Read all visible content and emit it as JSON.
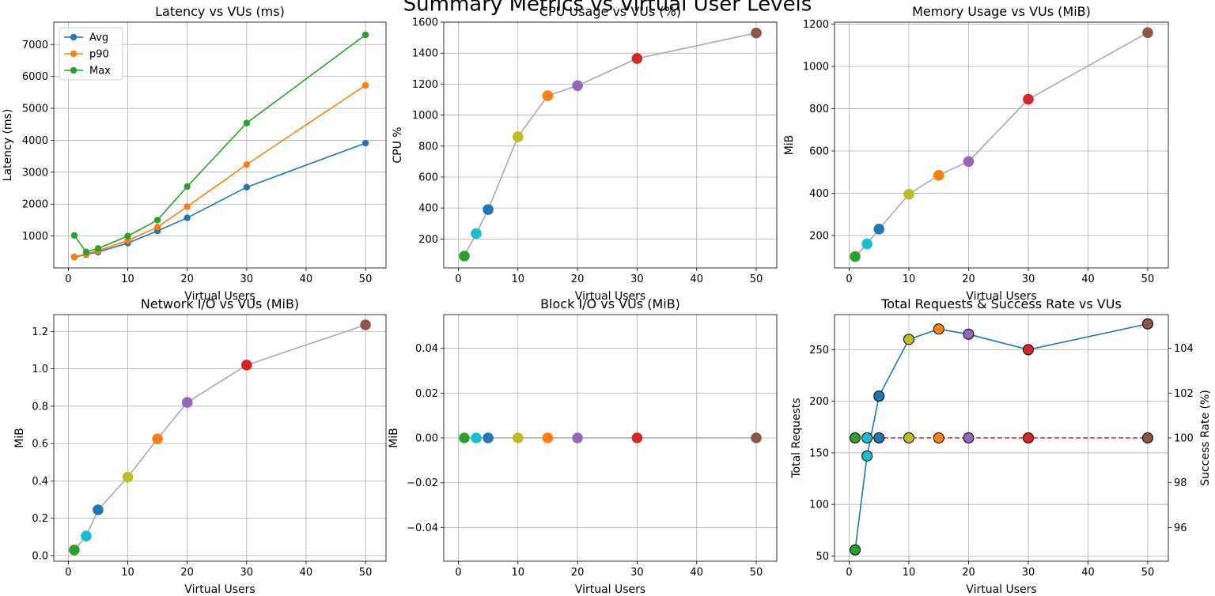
{
  "figure": {
    "suptitle": "Summary Metrics vs Virtual User Levels"
  },
  "point_colors": [
    "#2ca02c",
    "#17becf",
    "#1f77b4",
    "#bcbd22",
    "#ff7f0e",
    "#9467bd",
    "#d62728",
    "#8c564b"
  ],
  "chart_data": [
    {
      "id": "latency",
      "type": "line",
      "title": "Latency vs VUs (ms)",
      "xlabel": "Virtual Users",
      "ylabel": "Latency (ms)",
      "x": [
        1,
        3,
        5,
        10,
        15,
        20,
        30,
        50
      ],
      "xlim": [
        -2.45,
        53.45
      ],
      "ylim": [
        0,
        7700
      ],
      "xticks": [
        0,
        10,
        20,
        30,
        40,
        50
      ],
      "yticks": [
        1000,
        2000,
        3000,
        4000,
        5000,
        6000,
        7000
      ],
      "grid": true,
      "legend": "top-left",
      "series": [
        {
          "name": "Avg",
          "color": "#1f77b4",
          "values": [
            340,
            420,
            500,
            780,
            1160,
            1570,
            2530,
            3910
          ]
        },
        {
          "name": "p90",
          "color": "#ff7f0e",
          "values": [
            350,
            440,
            540,
            860,
            1280,
            1920,
            3240,
            5720
          ]
        },
        {
          "name": "Max",
          "color": "#2ca02c",
          "values": [
            1020,
            500,
            610,
            1000,
            1500,
            2550,
            4540,
            7300
          ]
        }
      ]
    },
    {
      "id": "cpu",
      "type": "line",
      "title": "CPU Usage vs VUs (%)",
      "xlabel": "Virtual Users",
      "ylabel": "CPU %",
      "x": [
        1,
        3,
        5,
        10,
        15,
        20,
        30,
        50
      ],
      "xlim": [
        -2.45,
        53.45
      ],
      "ylim": [
        13,
        1600
      ],
      "xticks": [
        0,
        10,
        20,
        30,
        40,
        50
      ],
      "yticks": [
        200,
        400,
        600,
        800,
        1000,
        1200,
        1400,
        1600
      ],
      "grid": true,
      "line_color": "#aaaaaa",
      "values": [
        90,
        235,
        390,
        860,
        1125,
        1190,
        1365,
        1530
      ]
    },
    {
      "id": "memory",
      "type": "line",
      "title": "Memory Usage vs VUs (MiB)",
      "xlabel": "Virtual Users",
      "ylabel": "MiB",
      "x": [
        1,
        3,
        5,
        10,
        15,
        20,
        30,
        50
      ],
      "xlim": [
        -2.45,
        53.45
      ],
      "ylim": [
        46,
        1210
      ],
      "xticks": [
        0,
        10,
        20,
        30,
        40,
        50
      ],
      "yticks": [
        200,
        400,
        600,
        800,
        1000,
        1200
      ],
      "grid": true,
      "line_color": "#aaaaaa",
      "values": [
        100,
        160,
        230,
        395,
        485,
        550,
        845,
        1160
      ]
    },
    {
      "id": "network",
      "type": "line",
      "title": "Network I/O vs VUs (MiB)",
      "xlabel": "Virtual Users",
      "ylabel": "MiB",
      "x": [
        1,
        3,
        5,
        10,
        15,
        20,
        30,
        50
      ],
      "xlim": [
        -2.45,
        53.45
      ],
      "ylim": [
        -0.03,
        1.29
      ],
      "xticks": [
        0,
        10,
        20,
        30,
        40,
        50
      ],
      "yticks": [
        0.0,
        0.2,
        0.4,
        0.6,
        0.8,
        1.0,
        1.2
      ],
      "ytick_labels": [
        "0.0",
        "0.2",
        "0.4",
        "0.6",
        "0.8",
        "1.0",
        "1.2"
      ],
      "grid": true,
      "line_color": "#aaaaaa",
      "values": [
        0.03,
        0.105,
        0.245,
        0.42,
        0.625,
        0.82,
        1.02,
        1.235
      ]
    },
    {
      "id": "block",
      "type": "line",
      "title": "Block I/O vs VUs (MiB)",
      "xlabel": "Virtual Users",
      "ylabel": "MiB",
      "x": [
        1,
        3,
        5,
        10,
        15,
        20,
        30,
        50
      ],
      "xlim": [
        -2.45,
        53.45
      ],
      "ylim": [
        -0.055,
        0.055
      ],
      "xticks": [
        0,
        10,
        20,
        30,
        40,
        50
      ],
      "yticks": [
        -0.04,
        -0.02,
        0.0,
        0.02,
        0.04
      ],
      "ytick_labels": [
        "−0.04",
        "−0.02",
        "0.00",
        "0.02",
        "0.04"
      ],
      "grid": true,
      "line_color": "#aaaaaa",
      "values": [
        0,
        0,
        0,
        0,
        0,
        0,
        0,
        0
      ]
    },
    {
      "id": "requests",
      "type": "line",
      "title": "Total Requests & Success Rate vs VUs",
      "xlabel": "Virtual Users",
      "ylabel": "Total Requests",
      "ylabel_color": "#1f77b4",
      "y2label": "Success Rate (%)",
      "y2label_color": "#d62728",
      "x": [
        1,
        3,
        5,
        10,
        15,
        20,
        30,
        50
      ],
      "xlim": [
        -2.45,
        53.45
      ],
      "ylim": [
        45,
        284
      ],
      "y2lim": [
        94.5,
        105.5
      ],
      "xticks": [
        0,
        10,
        20,
        30,
        40,
        50
      ],
      "yticks": [
        50,
        100,
        150,
        200,
        250
      ],
      "y2ticks": [
        96,
        98,
        100,
        102,
        104
      ],
      "grid": true,
      "series": [
        {
          "name": "",
          "color": "#1f77b4",
          "axis": "left",
          "values": [
            56,
            147,
            205,
            260,
            270,
            265,
            250,
            275
          ]
        },
        {
          "name": "",
          "color": "#d62728",
          "axis": "right",
          "dashed": true,
          "values": [
            100,
            100,
            100,
            100,
            100,
            100,
            100,
            100
          ]
        }
      ]
    }
  ]
}
